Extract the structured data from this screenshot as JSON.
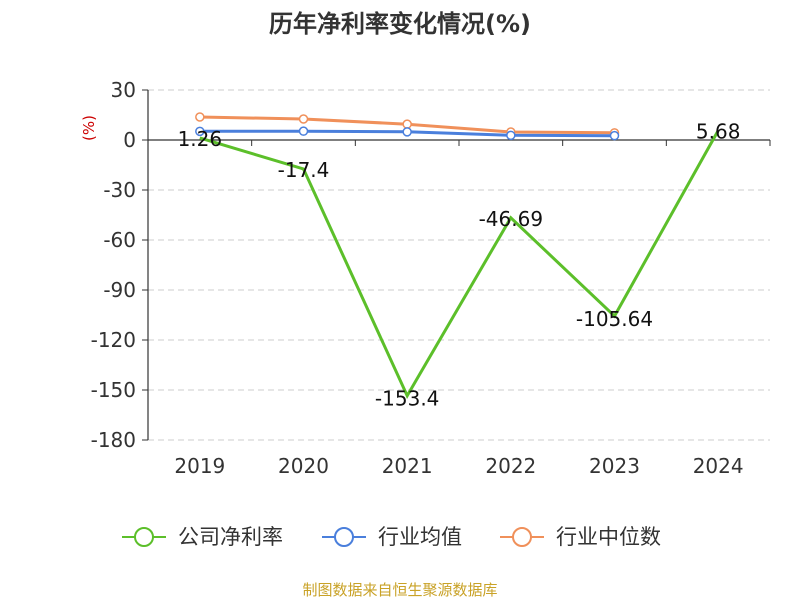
{
  "chart_data": {
    "type": "line",
    "title": "历年净利率变化情况(%)",
    "unit_label": "(%)",
    "categories": [
      "2019",
      "2020",
      "2021",
      "2022",
      "2023",
      "2024"
    ],
    "ylim": [
      -180,
      30
    ],
    "yticks": [
      30,
      0,
      -30,
      -60,
      -90,
      -120,
      -150,
      -180
    ],
    "grid": true,
    "legend_position": "bottom",
    "series": [
      {
        "name": "公司净利率",
        "color": "#5cbf2a",
        "values": [
          1.26,
          -17.4,
          -153.4,
          -46.69,
          -105.64,
          5.68
        ],
        "labels": [
          "1.26",
          "-17.4",
          "-153.4",
          "-46.69",
          "-105.64",
          "5.68"
        ]
      },
      {
        "name": "行业均值",
        "color": "#4a7fdc",
        "values": [
          5.2,
          5.3,
          4.9,
          2.8,
          2.6,
          null
        ]
      },
      {
        "name": "行业中位数",
        "color": "#f0905a",
        "values": [
          13.8,
          12.6,
          9.5,
          4.8,
          4.3,
          null
        ]
      }
    ],
    "source": "制图数据来自恒生聚源数据库"
  }
}
